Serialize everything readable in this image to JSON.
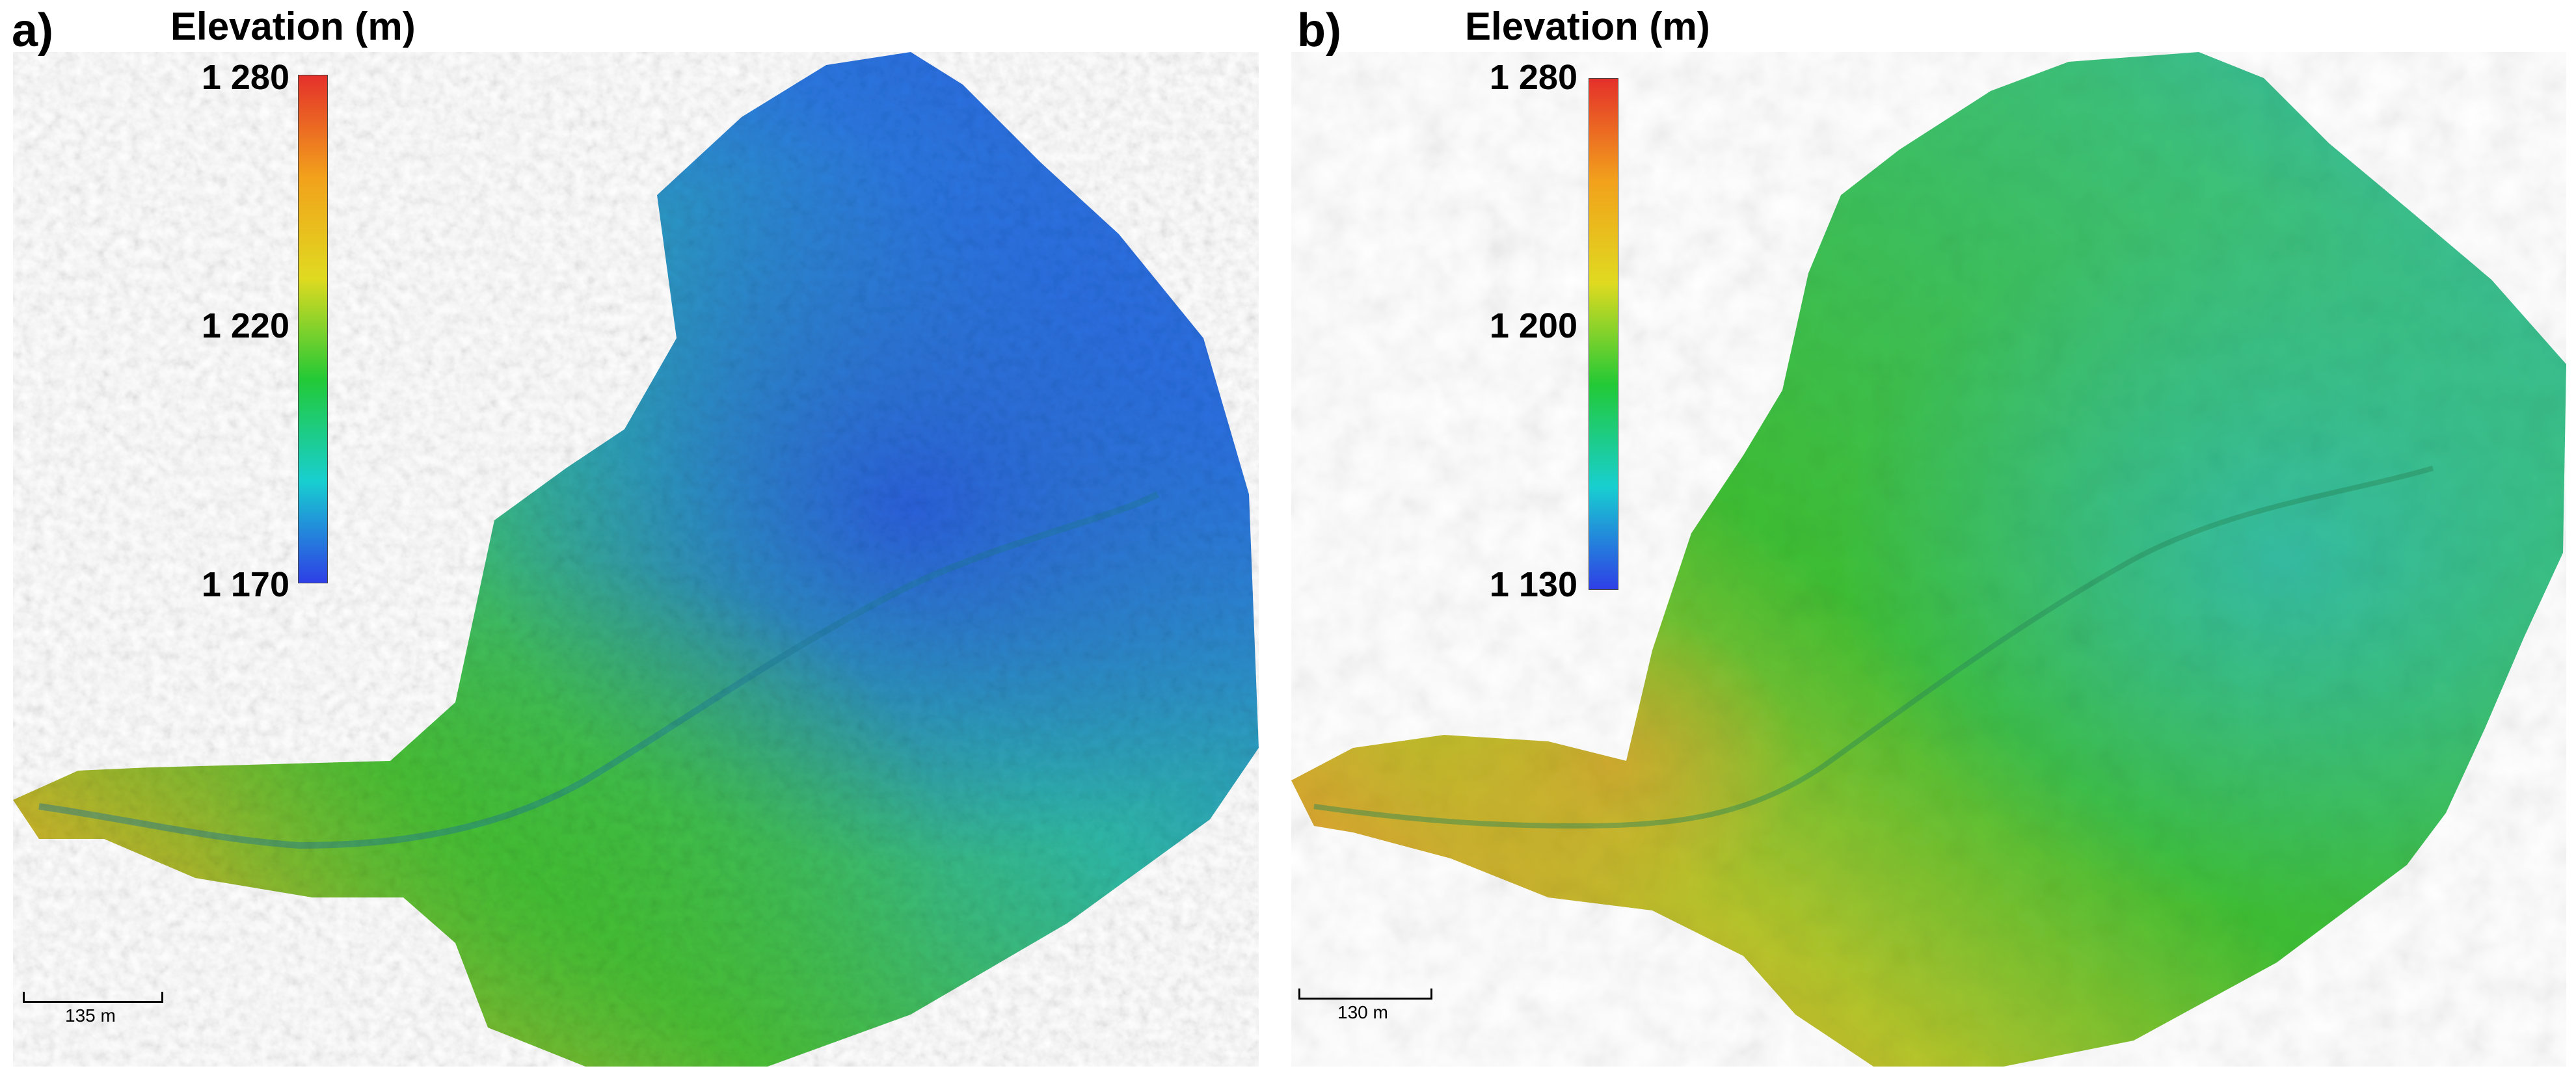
{
  "panels": [
    {
      "label": "a)",
      "legend_title": "Elevation (m)",
      "legend_ticks": [
        "1 280",
        "1 220",
        "1 170"
      ],
      "scale_text": "135 m"
    },
    {
      "label": "b)",
      "legend_title": "Elevation (m)",
      "legend_ticks": [
        "1 280",
        "1 200",
        "1 130"
      ],
      "scale_text": "130 m"
    }
  ],
  "colormap": [
    "#e4302a",
    "#f2a11b",
    "#e0da20",
    "#22c936",
    "#18cfd0",
    "#2e3fe6"
  ],
  "map_colors": {
    "high": "#d8452a",
    "mid_high": "#c9b42a",
    "mid": "#3fbf35",
    "low": "#2fb8a8",
    "lowest": "#2b5fe0"
  }
}
